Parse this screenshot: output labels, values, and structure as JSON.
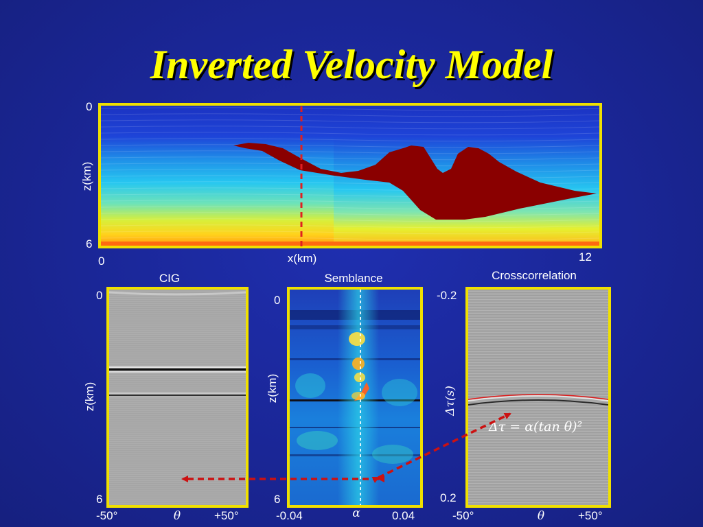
{
  "slide": {
    "title": "Inverted Velocity Model"
  },
  "velocity_panel": {
    "ytick_top": "0",
    "ytick_bottom": "6",
    "ylabel": "z(km)",
    "xtick_left": "0",
    "xtick_right": "12",
    "xlabel": "x(km)"
  },
  "cig_panel": {
    "title": "CIG",
    "ytick_top": "0",
    "ytick_bottom": "6",
    "ylabel": "z(km)",
    "xtick_left": "-50°",
    "xtick_mid": "θ",
    "xtick_right": "+50°"
  },
  "semblance_panel": {
    "title": "Semblance",
    "ytick_top": "0",
    "ytick_bottom": "6",
    "ylabel": "z(km)",
    "xtick_left": "-0.04",
    "xtick_mid": "α",
    "xtick_right": "0.04"
  },
  "crosscorrelation_panel": {
    "title": "Crosscorrelation",
    "ytick_top": "-0.2",
    "ytick_bottom": "0.2",
    "ylabel": "Δτ(s)",
    "xtick_left": "-50°",
    "xtick_mid": "θ",
    "xtick_right": "+50°",
    "equation": "Δτ = α(tan θ)²"
  },
  "colors": {
    "background": "#1a2696",
    "title_yellow": "#ffff00",
    "panel_border": "#f0e000",
    "salt_body": "#8a0000",
    "arrow_red": "#cc1111"
  }
}
